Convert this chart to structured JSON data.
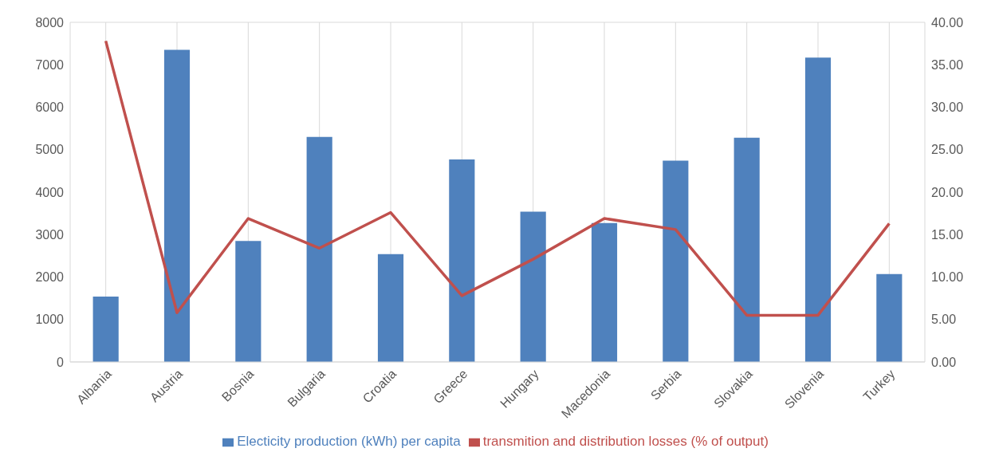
{
  "chart_data": {
    "type": "bar",
    "categories": [
      "Albania",
      "Austria",
      "Bosnia",
      "Bulgaria",
      "Croatia",
      "Greece",
      "Hungary",
      "Macedonia",
      "Serbia",
      "Slovakia",
      "Slovenia",
      "Turkey"
    ],
    "series": [
      {
        "name": "Electicity production (kWh) per capita",
        "color": "#4f81bd",
        "values": [
          1540,
          7350,
          2850,
          5300,
          2540,
          4770,
          3540,
          3270,
          4740,
          5280,
          7170,
          2070
        ]
      },
      {
        "name": "transmition and distribution losses (% of output)",
        "type": "line",
        "axis": "y2",
        "color": "#c0504d",
        "values": [
          37.8,
          5.8,
          16.9,
          13.4,
          17.6,
          7.8,
          12.1,
          16.9,
          15.6,
          5.5,
          5.5,
          16.3
        ]
      }
    ],
    "ylim": [
      0,
      8000
    ],
    "yticks": [
      0,
      1000,
      2000,
      3000,
      4000,
      5000,
      6000,
      7000,
      8000
    ],
    "y2lim": [
      0,
      40
    ],
    "y2ticks": [
      {
        "value": 0,
        "label": "0.00"
      },
      {
        "value": 5,
        "label": "5.00"
      },
      {
        "value": 10,
        "label": "10.00"
      },
      {
        "value": 15,
        "label": "15.00"
      },
      {
        "value": 20,
        "label": "20.00"
      },
      {
        "value": 25,
        "label": "25.00"
      },
      {
        "value": 30,
        "label": "30.00"
      },
      {
        "value": 35,
        "label": "35.00"
      },
      {
        "value": 40,
        "label": "40.00"
      }
    ],
    "grid": true,
    "legend": "bottom",
    "marker": "none"
  }
}
